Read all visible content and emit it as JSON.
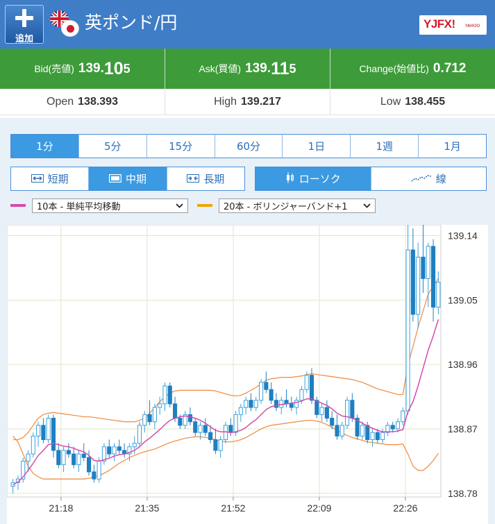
{
  "header": {
    "add_label": "追加",
    "pair_title": "英ポンド/円",
    "brand_text": "YJFX!",
    "brand_sub": "YAHOO",
    "bg_color": "#3f7dc7"
  },
  "prices": {
    "bid_label": "Bid(売値)",
    "bid_main": "139.",
    "bid_big": "10",
    "bid_last": "5",
    "ask_label": "Ask(買値)",
    "ask_main": "139.",
    "ask_big": "11",
    "ask_last": "5",
    "change_label": "Change(始値比)",
    "change_value": "0.712",
    "bg_color": "#3d9b3a"
  },
  "ohl": {
    "open_label": "Open",
    "open_value": "138.393",
    "high_label": "High",
    "high_value": "139.217",
    "low_label": "Low",
    "low_value": "138.455"
  },
  "timeframes": [
    {
      "label": "1分",
      "active": true
    },
    {
      "label": "5分",
      "active": false
    },
    {
      "label": "15分",
      "active": false
    },
    {
      "label": "60分",
      "active": false
    },
    {
      "label": "1日",
      "active": false
    },
    {
      "label": "1週",
      "active": false
    },
    {
      "label": "1月",
      "active": false
    }
  ],
  "ranges": [
    {
      "icon": "arrows-out-icon",
      "glyph": "⟷",
      "label": "短期",
      "active": false
    },
    {
      "icon": "window-icon",
      "glyph": "▭",
      "label": "中期",
      "active": true
    },
    {
      "icon": "arrows-in-icon",
      "glyph": "⇥⇤",
      "label": "長期",
      "active": false
    }
  ],
  "chart_types": [
    {
      "icon": "candlestick-icon",
      "glyph": "▮",
      "label": "ローソク",
      "active": true
    },
    {
      "icon": "line-icon",
      "glyph": "〰",
      "label": "線",
      "active": false
    }
  ],
  "indicators": {
    "ma": {
      "label": "10本 - 単純平均移動",
      "color": "#d64aaa"
    },
    "bb": {
      "label": "20本 - ボリンジャーバンド+1",
      "color": "#f2a500"
    }
  },
  "chart_data": {
    "type": "candlestick",
    "x_ticks": [
      "21:18",
      "21:35",
      "21:52",
      "22:09",
      "22:26"
    ],
    "y_ticks": [
      "139.14",
      "139.05",
      "138.96",
      "138.87",
      "138.78"
    ],
    "ylim": [
      138.775,
      139.155
    ],
    "grid": true,
    "up_color": "#3aa0dc",
    "down_color": "#1f7fc0",
    "ma_color": "#d64aaa",
    "bb_color": "#f2914a",
    "candles": [
      [
        138.79,
        138.8,
        138.78,
        138.795
      ],
      [
        138.795,
        138.805,
        138.785,
        138.8
      ],
      [
        138.8,
        138.83,
        138.795,
        138.825
      ],
      [
        138.825,
        138.84,
        138.81,
        138.835
      ],
      [
        138.835,
        138.865,
        138.83,
        138.86
      ],
      [
        138.86,
        138.88,
        138.845,
        138.875
      ],
      [
        138.875,
        138.885,
        138.85,
        138.855
      ],
      [
        138.855,
        138.89,
        138.85,
        138.885
      ],
      [
        138.885,
        138.89,
        138.83,
        138.84
      ],
      [
        138.84,
        138.85,
        138.815,
        138.82
      ],
      [
        138.82,
        138.845,
        138.81,
        138.84
      ],
      [
        138.84,
        138.85,
        138.83,
        138.835
      ],
      [
        138.835,
        138.845,
        138.815,
        138.82
      ],
      [
        138.82,
        138.84,
        138.81,
        138.835
      ],
      [
        138.835,
        138.85,
        138.825,
        138.83
      ],
      [
        138.83,
        138.84,
        138.805,
        138.81
      ],
      [
        138.81,
        138.82,
        138.795,
        138.8
      ],
      [
        138.8,
        138.83,
        138.795,
        138.825
      ],
      [
        138.825,
        138.85,
        138.82,
        138.845
      ],
      [
        138.845,
        138.855,
        138.83,
        138.835
      ],
      [
        138.835,
        138.85,
        138.825,
        138.845
      ],
      [
        138.845,
        138.855,
        138.835,
        138.84
      ],
      [
        138.84,
        138.85,
        138.83,
        138.835
      ],
      [
        138.835,
        138.85,
        138.825,
        138.845
      ],
      [
        138.845,
        138.86,
        138.835,
        138.85
      ],
      [
        138.85,
        138.88,
        138.845,
        138.875
      ],
      [
        138.875,
        138.895,
        138.865,
        138.89
      ],
      [
        138.89,
        138.91,
        138.875,
        138.88
      ],
      [
        138.88,
        138.905,
        138.87,
        138.9
      ],
      [
        138.9,
        138.915,
        138.89,
        138.905
      ],
      [
        138.905,
        138.935,
        138.895,
        138.93
      ],
      [
        138.93,
        138.935,
        138.9,
        138.905
      ],
      [
        138.905,
        138.915,
        138.88,
        138.885
      ],
      [
        138.885,
        138.89,
        138.87,
        138.875
      ],
      [
        138.875,
        138.895,
        138.87,
        138.89
      ],
      [
        138.89,
        138.9,
        138.875,
        138.88
      ],
      [
        138.88,
        138.885,
        138.86,
        138.865
      ],
      [
        138.865,
        138.88,
        138.855,
        138.875
      ],
      [
        138.875,
        138.885,
        138.86,
        138.865
      ],
      [
        138.865,
        138.875,
        138.85,
        138.855
      ],
      [
        138.855,
        138.87,
        138.835,
        138.84
      ],
      [
        138.84,
        138.86,
        138.83,
        138.855
      ],
      [
        138.855,
        138.88,
        138.85,
        138.875
      ],
      [
        138.875,
        138.885,
        138.86,
        138.865
      ],
      [
        138.865,
        138.895,
        138.86,
        138.89
      ],
      [
        138.89,
        138.905,
        138.88,
        138.9
      ],
      [
        138.9,
        138.915,
        138.89,
        138.91
      ],
      [
        138.91,
        138.92,
        138.895,
        138.9
      ],
      [
        138.9,
        138.915,
        138.895,
        138.91
      ],
      [
        138.91,
        138.94,
        138.905,
        138.935
      ],
      [
        138.935,
        138.95,
        138.92,
        138.925
      ],
      [
        138.925,
        138.935,
        138.905,
        138.91
      ],
      [
        138.91,
        138.92,
        138.895,
        138.9
      ],
      [
        138.9,
        138.915,
        138.89,
        138.91
      ],
      [
        138.91,
        138.925,
        138.9,
        138.905
      ],
      [
        138.905,
        138.915,
        138.895,
        138.9
      ],
      [
        138.9,
        138.915,
        138.89,
        138.91
      ],
      [
        138.91,
        138.93,
        138.905,
        138.925
      ],
      [
        138.925,
        138.95,
        138.92,
        138.945
      ],
      [
        138.945,
        138.955,
        138.905,
        138.91
      ],
      [
        138.91,
        138.915,
        138.885,
        138.89
      ],
      [
        138.89,
        138.905,
        138.88,
        138.9
      ],
      [
        138.9,
        138.91,
        138.88,
        138.885
      ],
      [
        138.885,
        138.895,
        138.87,
        138.875
      ],
      [
        138.875,
        138.89,
        138.855,
        138.86
      ],
      [
        138.86,
        138.88,
        138.855,
        138.875
      ],
      [
        138.875,
        138.915,
        138.87,
        138.91
      ],
      [
        138.91,
        138.92,
        138.88,
        138.885
      ],
      [
        138.885,
        138.89,
        138.855,
        138.86
      ],
      [
        138.86,
        138.88,
        138.855,
        138.875
      ],
      [
        138.875,
        138.88,
        138.85,
        138.855
      ],
      [
        138.855,
        138.87,
        138.845,
        138.865
      ],
      [
        138.865,
        138.87,
        138.85,
        138.855
      ],
      [
        138.855,
        138.87,
        138.85,
        138.865
      ],
      [
        138.865,
        138.88,
        138.86,
        138.875
      ],
      [
        138.875,
        138.88,
        138.865,
        138.87
      ],
      [
        138.87,
        138.885,
        138.865,
        138.88
      ],
      [
        138.88,
        138.9,
        138.875,
        138.895
      ],
      [
        138.895,
        139.17,
        138.89,
        139.12
      ],
      [
        139.12,
        139.15,
        139.02,
        139.03
      ],
      [
        139.03,
        139.13,
        139.01,
        139.11
      ],
      [
        139.11,
        139.16,
        139.06,
        139.08
      ],
      [
        139.08,
        139.13,
        139.04,
        139.125
      ],
      [
        139.125,
        139.135,
        139.02,
        139.04
      ],
      [
        139.04,
        139.09,
        139.03,
        139.075
      ]
    ],
    "ma": [
      138.792,
      138.796,
      138.803,
      138.812,
      138.822,
      138.833,
      138.84,
      138.848,
      138.85,
      138.848,
      138.846,
      138.845,
      138.843,
      138.84,
      138.838,
      138.833,
      138.826,
      138.825,
      138.827,
      138.829,
      138.832,
      138.834,
      138.835,
      138.837,
      138.84,
      138.845,
      138.852,
      138.857,
      138.863,
      138.869,
      138.876,
      138.882,
      138.885,
      138.887,
      138.888,
      138.887,
      138.885,
      138.882,
      138.878,
      138.873,
      138.868,
      138.866,
      138.866,
      138.865,
      138.866,
      138.868,
      138.872,
      138.878,
      138.883,
      138.89,
      138.897,
      138.901,
      138.903,
      138.904,
      138.905,
      138.906,
      138.907,
      138.909,
      138.912,
      138.912,
      138.909,
      138.906,
      138.903,
      138.898,
      138.892,
      138.888,
      138.887,
      138.885,
      138.882,
      138.878,
      138.874,
      138.871,
      138.868,
      138.866,
      138.866,
      138.866,
      138.867,
      138.869,
      138.894,
      138.908,
      138.93,
      138.955,
      138.98,
      139.0,
      139.023
    ],
    "bb_upper": [
      138.855,
      138.855,
      138.858,
      138.865,
      138.875,
      138.885,
      138.89,
      138.892,
      138.893,
      138.892,
      138.891,
      138.89,
      138.889,
      138.888,
      138.887,
      138.887,
      138.886,
      138.885,
      138.884,
      138.883,
      138.882,
      138.881,
      138.88,
      138.88,
      138.88,
      138.882,
      138.885,
      138.892,
      138.9,
      138.908,
      138.915,
      138.92,
      138.923,
      138.924,
      138.924,
      138.924,
      138.924,
      138.924,
      138.924,
      138.924,
      138.923,
      138.921,
      138.919,
      138.917,
      138.916,
      138.917,
      138.92,
      138.924,
      138.928,
      138.933,
      138.938,
      138.94,
      138.941,
      138.942,
      138.942,
      138.942,
      138.943,
      138.944,
      138.946,
      138.947,
      138.946,
      138.945,
      138.944,
      138.943,
      138.942,
      138.941,
      138.94,
      138.939,
      138.937,
      138.935,
      138.932,
      138.929,
      138.926,
      138.924,
      138.922,
      138.92,
      138.918,
      138.918,
      138.96,
      138.985,
      139.012,
      139.035,
      139.058,
      139.07,
      139.08
    ],
    "bb_lower": [
      138.86,
      138.852,
      138.835,
      138.818,
      138.808,
      138.803,
      138.8,
      138.8,
      138.8,
      138.8,
      138.8,
      138.8,
      138.8,
      138.8,
      138.8,
      138.801,
      138.803,
      138.805,
      138.808,
      138.812,
      138.817,
      138.822,
      138.826,
      138.83,
      138.833,
      138.836,
      138.838,
      138.84,
      138.842,
      138.845,
      138.848,
      138.851,
      138.853,
      138.855,
      138.857,
      138.858,
      138.859,
      138.859,
      138.858,
      138.857,
      138.855,
      138.853,
      138.852,
      138.852,
      138.853,
      138.855,
      138.858,
      138.862,
      138.866,
      138.87,
      138.873,
      138.875,
      138.876,
      138.877,
      138.878,
      138.879,
      138.88,
      138.881,
      138.882,
      138.882,
      138.881,
      138.879,
      138.876,
      138.872,
      138.868,
      138.864,
      138.861,
      138.858,
      138.856,
      138.854,
      138.852,
      138.851,
      138.85,
      138.849,
      138.848,
      138.848,
      138.848,
      138.849,
      138.835,
      138.818,
      138.812,
      138.812,
      138.818,
      138.826,
      138.836
    ]
  }
}
